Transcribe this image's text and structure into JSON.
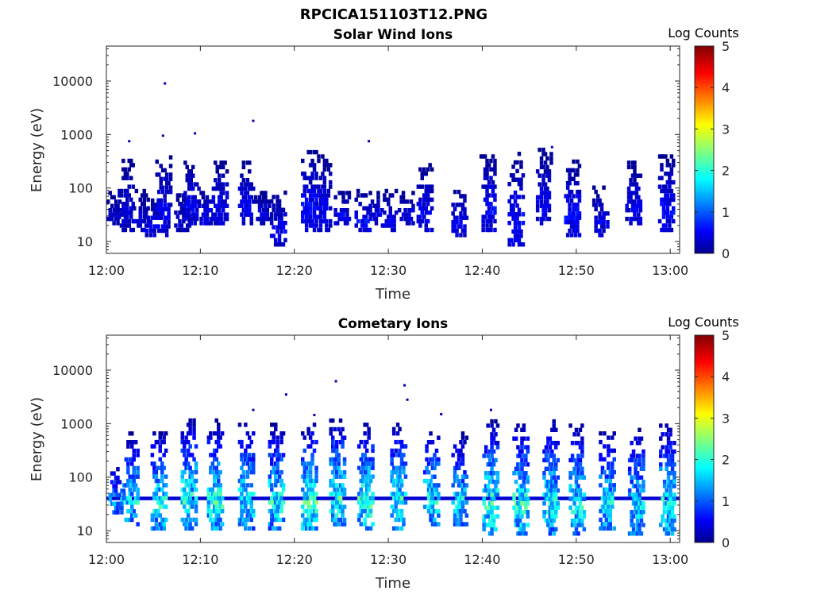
{
  "figure": {
    "title": "RPCICA151103T12.PNG"
  },
  "chart_data": [
    {
      "type": "heatmap",
      "title": "Solar Wind Ions",
      "xlabel": "Time",
      "ylabel": "Energy (eV)",
      "x_ticks": [
        "12:00",
        "12:10",
        "12:20",
        "12:30",
        "12:40",
        "12:50",
        "13:00"
      ],
      "x_range_minutes": [
        0,
        61
      ],
      "y_ticks": [
        "10",
        "100",
        "1000",
        "10000"
      ],
      "y_scale": "log",
      "y_range": [
        6,
        45000
      ],
      "colorbar": {
        "label": "Log Counts",
        "ticks": [
          "0",
          "1",
          "2",
          "3",
          "4",
          "5"
        ],
        "range": [
          0,
          5
        ],
        "colormap": "jet"
      },
      "bursts": [
        {
          "t": 0.8,
          "lo": 20,
          "hi": 80,
          "v": 0.3
        },
        {
          "t": 2.0,
          "lo": 15,
          "hi": 300,
          "v": 0.4
        },
        {
          "t": 3.6,
          "lo": 15,
          "hi": 80,
          "v": 0.4
        },
        {
          "t": 4.9,
          "lo": 12,
          "hi": 60,
          "v": 0.5
        },
        {
          "t": 6.0,
          "lo": 12,
          "hi": 400,
          "v": 0.5
        },
        {
          "t": 8.0,
          "lo": 15,
          "hi": 70,
          "v": 0.4
        },
        {
          "t": 9.0,
          "lo": 20,
          "hi": 350,
          "v": 0.5
        },
        {
          "t": 10.5,
          "lo": 20,
          "hi": 100,
          "v": 0.5
        },
        {
          "t": 12.0,
          "lo": 20,
          "hi": 300,
          "v": 0.5
        },
        {
          "t": 14.8,
          "lo": 20,
          "hi": 300,
          "v": 0.5
        },
        {
          "t": 16.5,
          "lo": 20,
          "hi": 80,
          "v": 0.4
        },
        {
          "t": 18.2,
          "lo": 8,
          "hi": 80,
          "v": 0.5
        },
        {
          "t": 21.5,
          "lo": 15,
          "hi": 600,
          "v": 0.6
        },
        {
          "t": 23.0,
          "lo": 15,
          "hi": 400,
          "v": 0.5
        },
        {
          "t": 25.0,
          "lo": 20,
          "hi": 80,
          "v": 0.5
        },
        {
          "t": 27.2,
          "lo": 15,
          "hi": 80,
          "v": 0.6
        },
        {
          "t": 28.5,
          "lo": 20,
          "hi": 80,
          "v": 0.4
        },
        {
          "t": 30.0,
          "lo": 15,
          "hi": 80,
          "v": 0.5
        },
        {
          "t": 31.8,
          "lo": 20,
          "hi": 80,
          "v": 0.4
        },
        {
          "t": 33.8,
          "lo": 15,
          "hi": 250,
          "v": 0.5
        },
        {
          "t": 37.5,
          "lo": 12,
          "hi": 100,
          "v": 0.5
        },
        {
          "t": 40.5,
          "lo": 15,
          "hi": 400,
          "v": 0.6
        },
        {
          "t": 43.5,
          "lo": 8,
          "hi": 400,
          "v": 0.6
        },
        {
          "t": 46.5,
          "lo": 20,
          "hi": 500,
          "v": 0.5
        },
        {
          "t": 49.5,
          "lo": 12,
          "hi": 300,
          "v": 0.6
        },
        {
          "t": 52.5,
          "lo": 12,
          "hi": 100,
          "v": 0.5
        },
        {
          "t": 56.0,
          "lo": 20,
          "hi": 300,
          "v": 0.5
        },
        {
          "t": 59.5,
          "lo": 15,
          "hi": 400,
          "v": 0.6
        }
      ],
      "points": [
        {
          "t": 6.1,
          "e": 9000,
          "v": 0.3
        },
        {
          "t": 15.5,
          "e": 1800,
          "v": 0.3
        },
        {
          "t": 9.3,
          "e": 1050,
          "v": 0.3
        },
        {
          "t": 5.9,
          "e": 950,
          "v": 0.3
        },
        {
          "t": 2.3,
          "e": 750,
          "v": 0.3
        },
        {
          "t": 27.8,
          "e": 750,
          "v": 0.3
        },
        {
          "t": 47.3,
          "e": 580,
          "v": 0.3
        }
      ]
    },
    {
      "type": "heatmap",
      "title": "Cometary Ions",
      "xlabel": "Time",
      "ylabel": "Energy (eV)",
      "x_ticks": [
        "12:00",
        "12:10",
        "12:20",
        "12:30",
        "12:40",
        "12:50",
        "13:00"
      ],
      "x_range_minutes": [
        0,
        61
      ],
      "y_ticks": [
        "10",
        "100",
        "1000",
        "10000"
      ],
      "y_scale": "log",
      "y_range": [
        6,
        45000
      ],
      "colorbar": {
        "label": "Log Counts",
        "ticks": [
          "0",
          "1",
          "2",
          "3",
          "4",
          "5"
        ],
        "range": [
          0,
          5
        ],
        "colormap": "jet"
      },
      "band": {
        "e": 40,
        "v": 0.4
      },
      "bursts": [
        {
          "t": 1.0,
          "lo": 20,
          "hi": 150,
          "v": 1.3
        },
        {
          "t": 2.5,
          "lo": 12,
          "hi": 600,
          "v": 1.6
        },
        {
          "t": 5.5,
          "lo": 10,
          "hi": 700,
          "v": 1.7
        },
        {
          "t": 8.7,
          "lo": 10,
          "hi": 1200,
          "v": 1.8
        },
        {
          "t": 11.5,
          "lo": 10,
          "hi": 1100,
          "v": 1.8
        },
        {
          "t": 14.8,
          "lo": 10,
          "hi": 1200,
          "v": 1.6
        },
        {
          "t": 18.0,
          "lo": 10,
          "hi": 900,
          "v": 1.7
        },
        {
          "t": 21.5,
          "lo": 10,
          "hi": 1000,
          "v": 1.9
        },
        {
          "t": 24.5,
          "lo": 12,
          "hi": 1200,
          "v": 1.9
        },
        {
          "t": 27.5,
          "lo": 10,
          "hi": 1000,
          "v": 1.9
        },
        {
          "t": 31.0,
          "lo": 10,
          "hi": 1000,
          "v": 1.8
        },
        {
          "t": 34.5,
          "lo": 12,
          "hi": 700,
          "v": 1.7
        },
        {
          "t": 37.5,
          "lo": 12,
          "hi": 600,
          "v": 1.6
        },
        {
          "t": 40.8,
          "lo": 8,
          "hi": 1200,
          "v": 1.8
        },
        {
          "t": 44.0,
          "lo": 8,
          "hi": 1000,
          "v": 1.8
        },
        {
          "t": 47.2,
          "lo": 8,
          "hi": 1200,
          "v": 1.7
        },
        {
          "t": 50.0,
          "lo": 8,
          "hi": 1000,
          "v": 1.7
        },
        {
          "t": 53.2,
          "lo": 10,
          "hi": 700,
          "v": 1.6
        },
        {
          "t": 56.3,
          "lo": 8,
          "hi": 800,
          "v": 1.6
        },
        {
          "t": 59.6,
          "lo": 8,
          "hi": 1000,
          "v": 1.7
        }
      ],
      "points": [
        {
          "t": 24.3,
          "e": 6200,
          "v": 0.3
        },
        {
          "t": 31.6,
          "e": 5200,
          "v": 0.3
        },
        {
          "t": 31.9,
          "e": 2800,
          "v": 0.3
        },
        {
          "t": 19.0,
          "e": 3500,
          "v": 0.3
        },
        {
          "t": 15.5,
          "e": 1800,
          "v": 0.3
        },
        {
          "t": 40.8,
          "e": 1800,
          "v": 0.3
        },
        {
          "t": 35.5,
          "e": 1500,
          "v": 0.3
        },
        {
          "t": 22.0,
          "e": 1450,
          "v": 0.3
        }
      ]
    }
  ]
}
